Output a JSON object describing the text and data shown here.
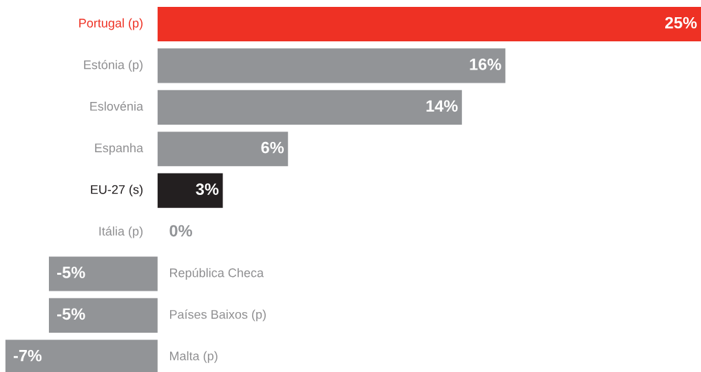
{
  "chart_data": {
    "type": "bar",
    "orientation": "horizontal",
    "categories": [
      "Portugal (p)",
      "Estónia (p)",
      "Eslovénia",
      "Espanha",
      "EU-27 (s)",
      "Itália (p)",
      "República Checa",
      "Países Baixos (p)",
      "Malta (p)"
    ],
    "values": [
      25,
      16,
      14,
      6,
      3,
      0,
      -5,
      -5,
      -7
    ],
    "value_labels": [
      "25%",
      "16%",
      "14%",
      "6%",
      "3%",
      "0%",
      "-5%",
      "-5%",
      "-7%"
    ],
    "colors": [
      "#ee3124",
      "#929497",
      "#929497",
      "#929497",
      "#231f20",
      "#929497",
      "#929497",
      "#929497",
      "#929497"
    ],
    "xlim": [
      -7.25,
      25
    ]
  }
}
